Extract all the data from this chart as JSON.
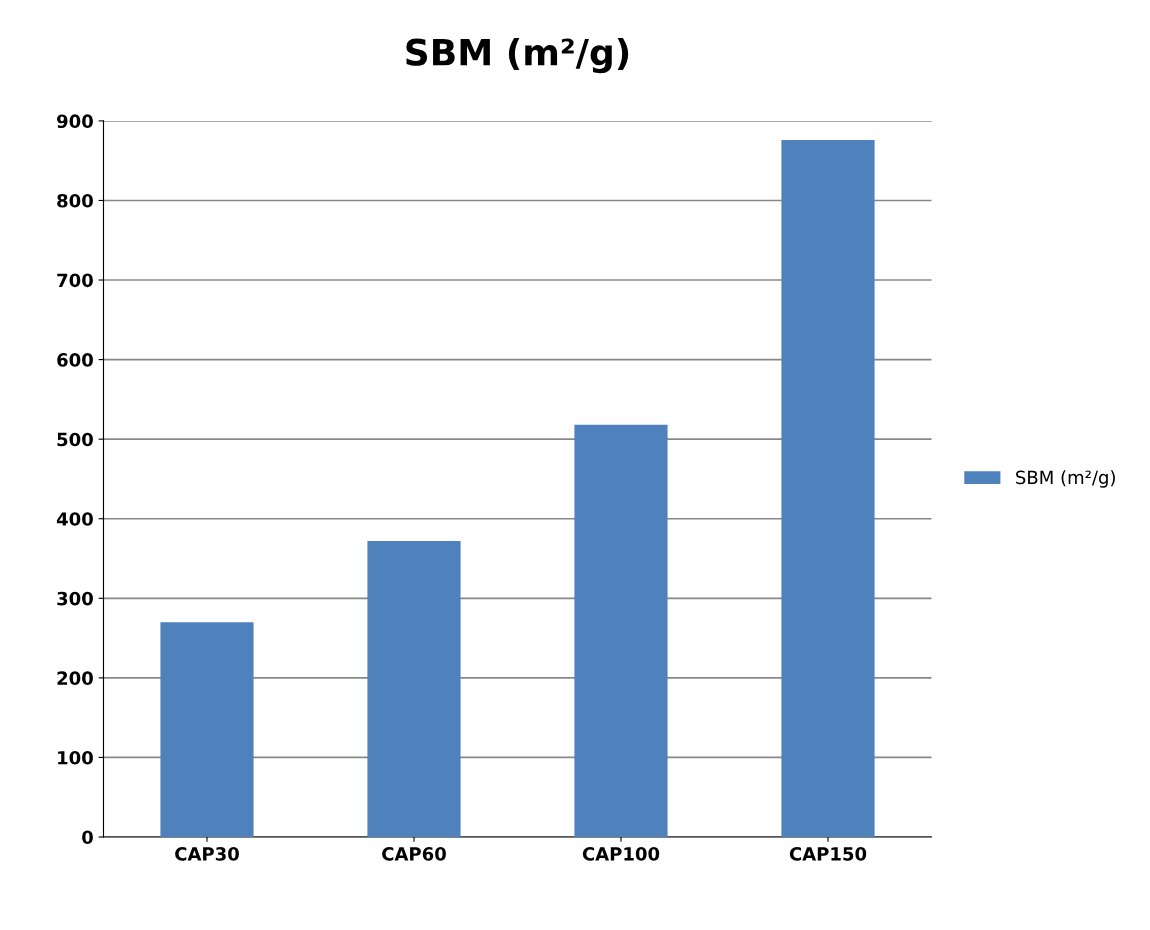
{
  "chart_data": {
    "type": "bar",
    "title": "SBM (m²/g)",
    "categories": [
      "CAP30",
      "CAP60",
      "CAP100",
      "CAP150"
    ],
    "series": [
      {
        "name": "SBM (m²/g)",
        "color": "#4f81bd",
        "values": [
          270,
          372,
          518,
          876
        ]
      }
    ],
    "ylim": [
      0,
      900
    ],
    "yticks": [
      0,
      100,
      200,
      300,
      400,
      500,
      600,
      700,
      800,
      900
    ],
    "grid": "y",
    "legend": "right"
  }
}
